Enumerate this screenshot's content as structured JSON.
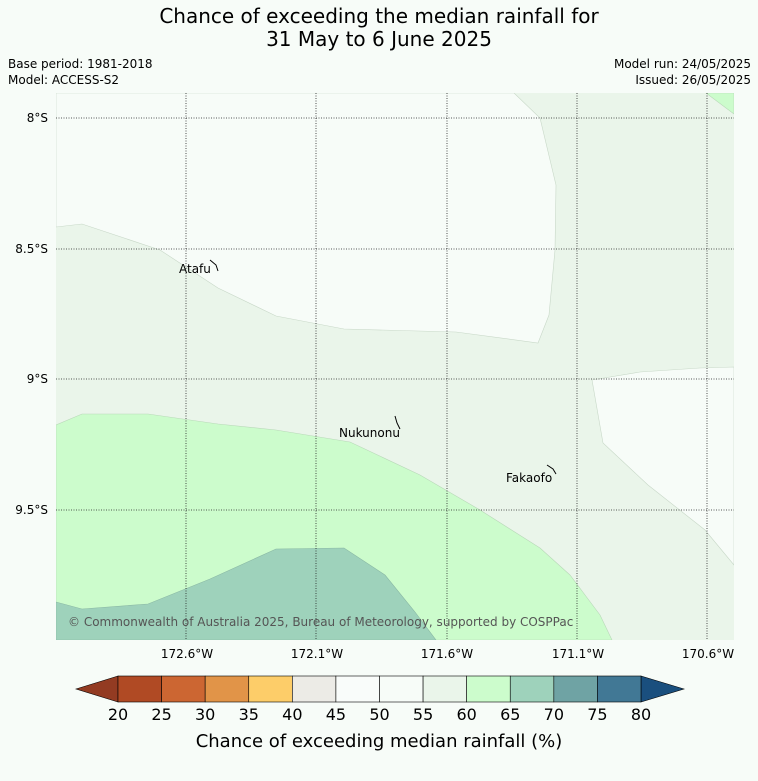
{
  "title": {
    "line1": "Chance of exceeding the median rainfall for",
    "line2": "31 May to 6 June 2025"
  },
  "meta": {
    "base_period": "Base period: 1981-2018",
    "model": "Model: ACCESS-S2",
    "model_run": "Model run: 24/05/2025",
    "issued": "Issued: 26/05/2025"
  },
  "map": {
    "lat_labels": [
      "8°S",
      "8.5°S",
      "9°S",
      "9.5°S"
    ],
    "lon_labels": [
      "172.6°W",
      "172.1°W",
      "171.6°W",
      "171.1°W",
      "170.6°W"
    ],
    "places": [
      {
        "name": "Atafu"
      },
      {
        "name": "Nukunonu"
      },
      {
        "name": "Fakaofo"
      }
    ],
    "copyright": "© Commonwealth of Australia 2025, Bureau of Meteorology, supported by COSPPac",
    "zone_colors": {
      "50-55": "#f7fcf8",
      "55-60": "#eaf5ea",
      "60-65": "#ccfccc",
      "65-70": "#9ed2bb"
    }
  },
  "colorbar": {
    "ticks": [
      "20",
      "25",
      "30",
      "35",
      "40",
      "45",
      "50",
      "55",
      "60",
      "65",
      "70",
      "75",
      "80"
    ],
    "colors": [
      "#b04a24",
      "#cc6632",
      "#e19448",
      "#fdcd69",
      "#ecebe6",
      "#f9fcfa",
      "#f7fcf8",
      "#eaf5ea",
      "#ccfccc",
      "#9ed2bb",
      "#6fa3a4",
      "#417895"
    ],
    "under_color": "#933b22",
    "over_color": "#1a4f7e",
    "title": "Chance of exceeding median rainfall (%)"
  }
}
